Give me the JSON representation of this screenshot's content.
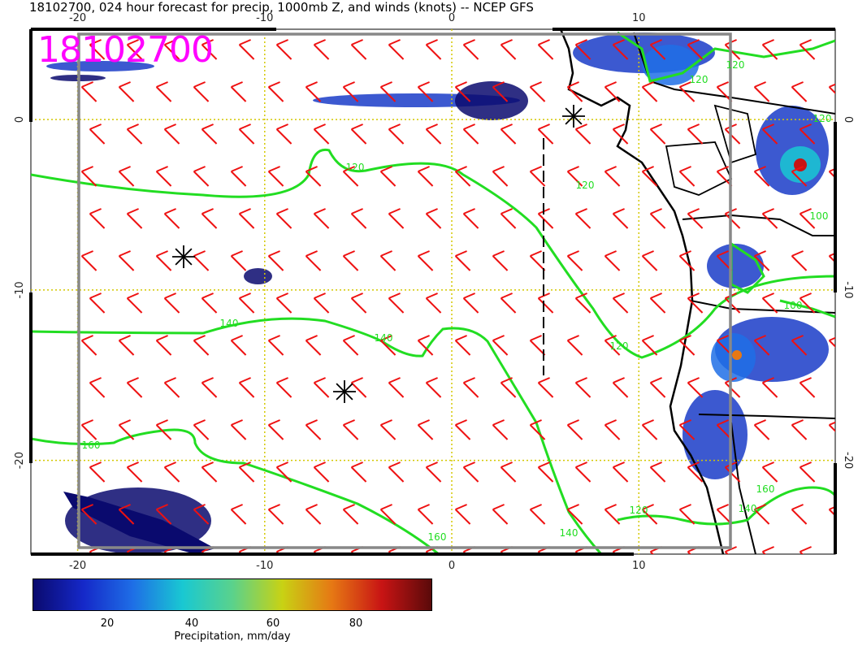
{
  "title": "18102700, 024 hour forecast for precip, 1000mb Z, and winds (knots) -- NCEP GFS",
  "stamp": "18102700",
  "map": {
    "lon_range": [
      -22.5,
      20.5
    ],
    "lat_range": [
      -25.5,
      5.3
    ],
    "x_ticks_top": [
      "-20",
      "-10",
      "0",
      "10"
    ],
    "x_ticks_bottom": [
      "-20",
      "-10",
      "0",
      "10"
    ],
    "y_ticks_left": [
      "0",
      "-10",
      "-20"
    ],
    "y_ticks_right": [
      "0",
      "-10",
      "-20"
    ],
    "contour_color": "#22dd22",
    "barb_color": "#ee1111",
    "grid_color": "#d4c800",
    "contour_labels": [
      "120",
      "120",
      "140",
      "140",
      "120",
      "160",
      "160",
      "140",
      "120",
      "160",
      "140",
      "120",
      "100",
      "100",
      "120",
      "120"
    ]
  },
  "legend": {
    "ticks": [
      "20",
      "40",
      "60",
      "80"
    ],
    "label": "Precipitation, mm/day",
    "colors": [
      "#0a0a6e",
      "#1528c8",
      "#1e6ee6",
      "#19c8d2",
      "#5ad28c",
      "#c8d214",
      "#e67814",
      "#c81414",
      "#5a0a0a"
    ]
  }
}
